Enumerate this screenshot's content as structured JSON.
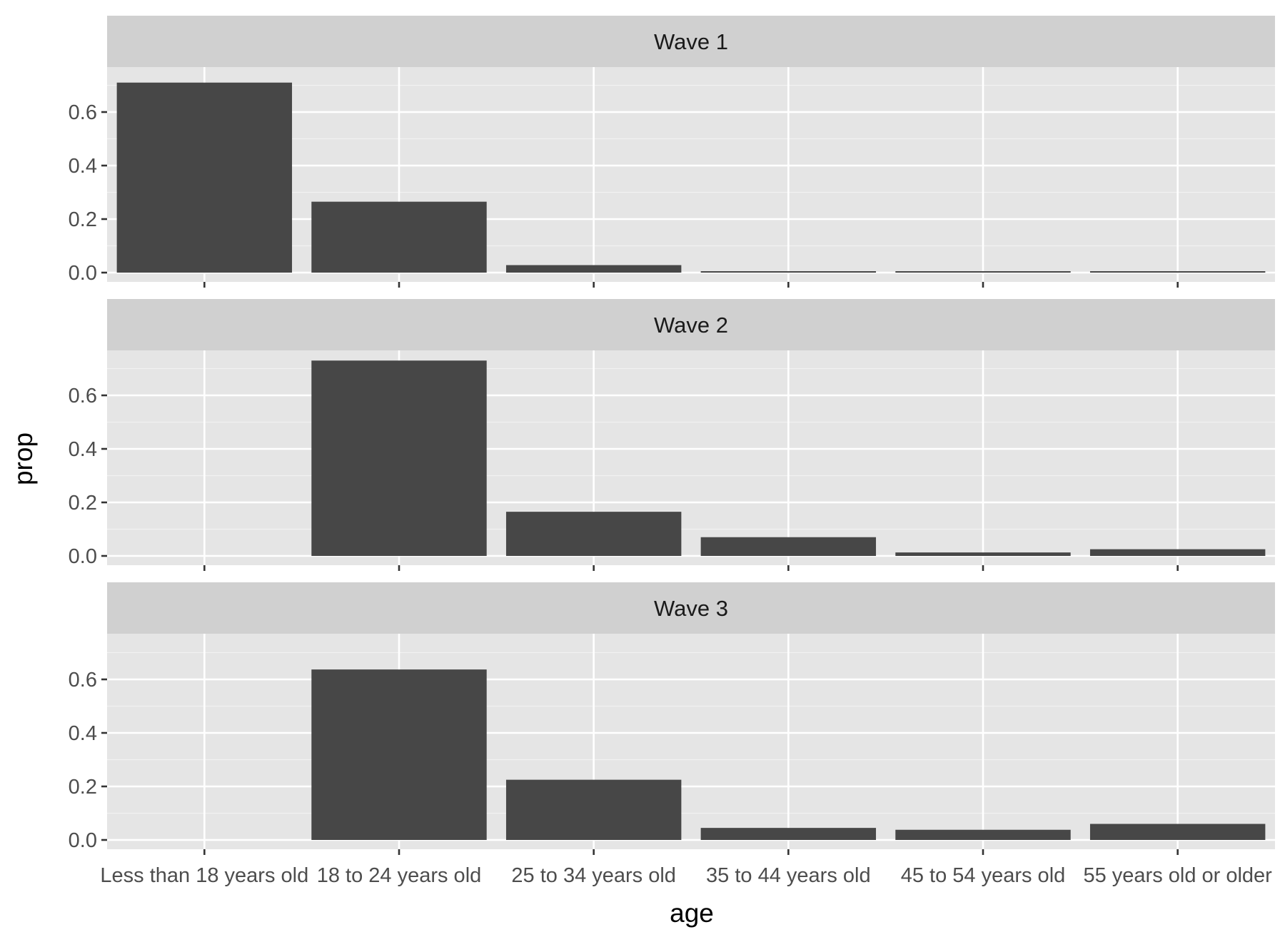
{
  "chart_data": {
    "type": "bar",
    "layout": "facet_wrap_vertical",
    "xlabel": "age",
    "ylabel": "prop",
    "categories": [
      "Less than 18 years old",
      "18 to 24 years old",
      "25 to 34 years old",
      "35 to 44 years old",
      "45 to 54 years old",
      "55 years old or older"
    ],
    "ylim": [
      0,
      0.75
    ],
    "yticks": [
      "0.0",
      "0.2",
      "0.4",
      "0.6"
    ],
    "grid": true,
    "bar_color": "#474747",
    "panel_background": "#e5e5e5",
    "strip_background": "#d0d0d0",
    "facets": [
      {
        "label": "Wave 1",
        "values": [
          0.71,
          0.265,
          0.028,
          0.005,
          0.002,
          0.002
        ]
      },
      {
        "label": "Wave 2",
        "values": [
          0.0,
          0.73,
          0.165,
          0.07,
          0.013,
          0.025
        ]
      },
      {
        "label": "Wave 3",
        "values": [
          0.0,
          0.637,
          0.225,
          0.045,
          0.038,
          0.06
        ]
      }
    ]
  }
}
